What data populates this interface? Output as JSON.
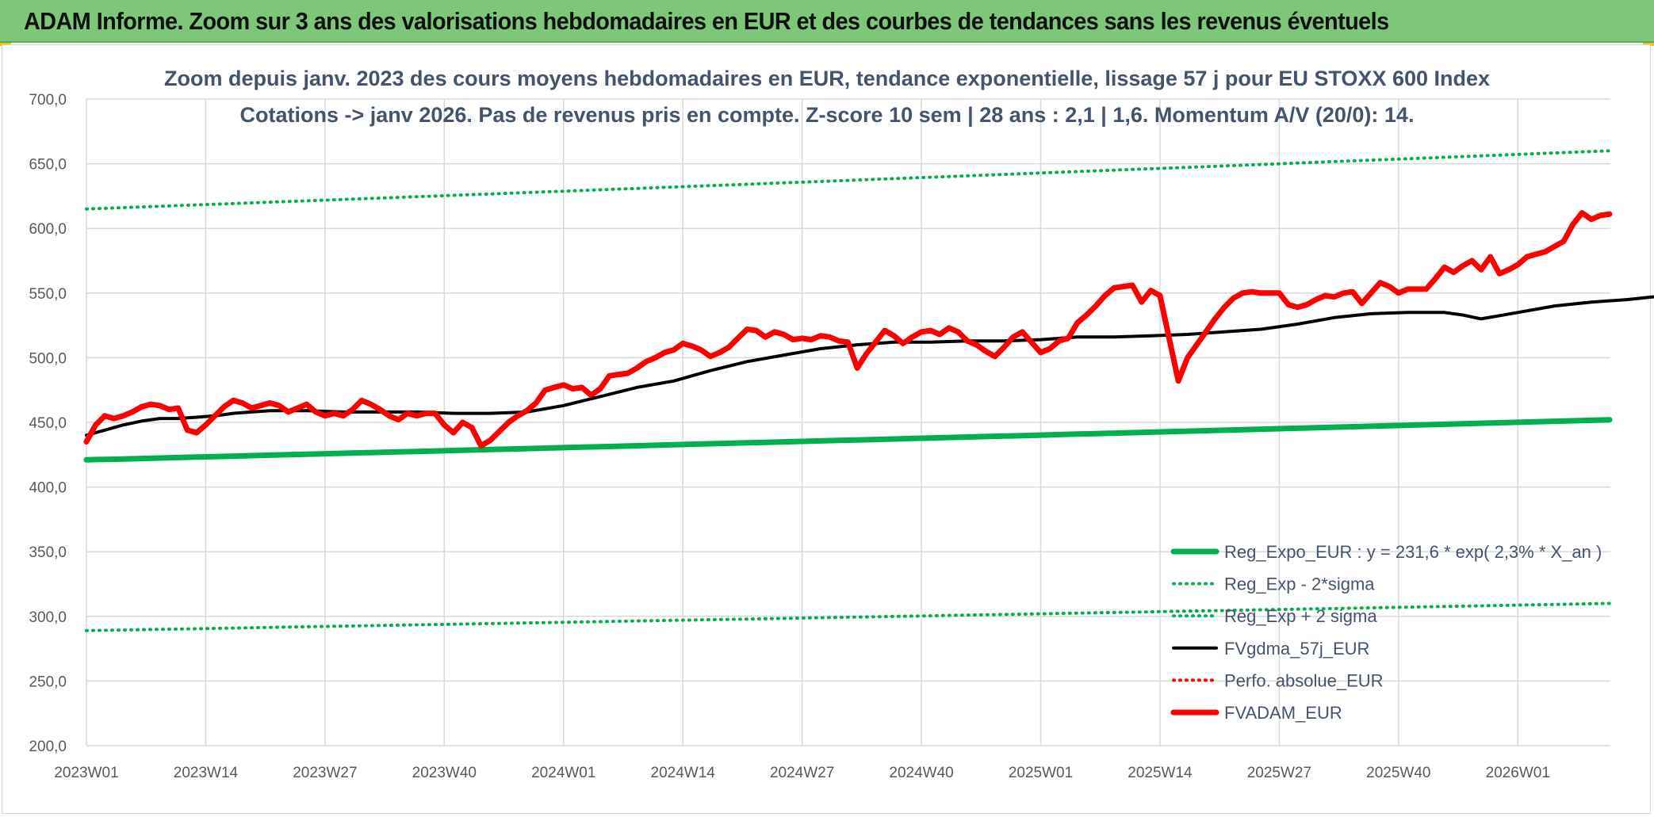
{
  "banner": {
    "title": "ADAM Informe. Zoom sur 3 ans des valorisations hebdomadaires en EUR et des courbes de tendances sans les revenus éventuels"
  },
  "chart_data": {
    "type": "line",
    "title": "Zoom depuis janv. 2023 des cours moyens hebdomadaires en EUR, tendance exponentielle, lissage 57 j pour EU STOXX 600 Index",
    "subtitle": "Cotations -> janv 2026. Pas de revenus pris en compte. Z-score 10 sem | 28 ans : 2,1 | 1,6. Momentum A/V (20/0): 14.",
    "xlabel": "",
    "ylabel": "",
    "ylim": [
      200,
      700
    ],
    "yticks": [
      "200,0",
      "250,0",
      "300,0",
      "350,0",
      "400,0",
      "450,0",
      "500,0",
      "550,0",
      "600,0",
      "650,0",
      "700,0"
    ],
    "xticks": [
      "2023W01",
      "2023W14",
      "2023W27",
      "2023W40",
      "2024W01",
      "2024W14",
      "2024W27",
      "2024W40",
      "2025W01",
      "2025W14",
      "2025W27",
      "2025W40",
      "2026W01"
    ],
    "grid": true,
    "legend_position": "bottom-right",
    "colors": {
      "green": "#00b050",
      "red": "#ff0000",
      "black": "#000000"
    },
    "series": [
      {
        "name": "Reg_Expo_EUR : y = 231,6 * exp( 2,3% *  X_an )",
        "style": "solid-thick",
        "color": "#00b050",
        "start": 421,
        "end": 452
      },
      {
        "name": "Reg_Exp - 2*sigma",
        "style": "dotted",
        "color": "#00b050",
        "start": 289,
        "end": 310
      },
      {
        "name": "Reg_Exp + 2 sigma",
        "style": "dotted",
        "color": "#00b050",
        "start": 615,
        "end": 660
      },
      {
        "name": "FVgdma_57j_EUR",
        "style": "solid",
        "color": "#000000",
        "points": [
          [
            0,
            440
          ],
          [
            2,
            444
          ],
          [
            4,
            448
          ],
          [
            6,
            451
          ],
          [
            8,
            453
          ],
          [
            10,
            453
          ],
          [
            12,
            454
          ],
          [
            14,
            455
          ],
          [
            16,
            457
          ],
          [
            18,
            458
          ],
          [
            20,
            459
          ],
          [
            24,
            459
          ],
          [
            28,
            458
          ],
          [
            32,
            458
          ],
          [
            36,
            458
          ],
          [
            40,
            457
          ],
          [
            44,
            457
          ],
          [
            48,
            458
          ],
          [
            52,
            463
          ],
          [
            56,
            470
          ],
          [
            60,
            477
          ],
          [
            64,
            482
          ],
          [
            68,
            490
          ],
          [
            72,
            497
          ],
          [
            76,
            502
          ],
          [
            80,
            507
          ],
          [
            84,
            510
          ],
          [
            88,
            512
          ],
          [
            92,
            512
          ],
          [
            96,
            513
          ],
          [
            100,
            513
          ],
          [
            104,
            514
          ],
          [
            108,
            516
          ],
          [
            112,
            516
          ],
          [
            116,
            517
          ],
          [
            120,
            518
          ],
          [
            124,
            520
          ],
          [
            128,
            522
          ],
          [
            132,
            526
          ],
          [
            136,
            531
          ],
          [
            140,
            534
          ],
          [
            144,
            535
          ],
          [
            148,
            535
          ],
          [
            150,
            533
          ],
          [
            152,
            530
          ],
          [
            156,
            535
          ],
          [
            160,
            540
          ],
          [
            164,
            543
          ],
          [
            168,
            545
          ],
          [
            172,
            548
          ],
          [
            176,
            551
          ],
          [
            180,
            555
          ],
          [
            184,
            559
          ],
          [
            188,
            563
          ],
          [
            192,
            568
          ],
          [
            196,
            573
          ],
          [
            200,
            580
          ],
          [
            204,
            587
          ],
          [
            208,
            593
          ],
          [
            210,
            596
          ],
          [
            212,
            598
          ]
        ]
      },
      {
        "name": "Perfo. absolue_EUR",
        "style": "dotted",
        "color": "#ff0000",
        "points": []
      },
      {
        "name": "FVADAM_EUR",
        "style": "solid-thick",
        "color": "#ff0000",
        "points": [
          [
            0,
            435
          ],
          [
            1,
            448
          ],
          [
            2,
            455
          ],
          [
            3,
            453
          ],
          [
            4,
            455
          ],
          [
            5,
            458
          ],
          [
            6,
            462
          ],
          [
            7,
            464
          ],
          [
            8,
            463
          ],
          [
            9,
            460
          ],
          [
            10,
            461
          ],
          [
            11,
            444
          ],
          [
            12,
            442
          ],
          [
            13,
            448
          ],
          [
            14,
            455
          ],
          [
            15,
            462
          ],
          [
            16,
            467
          ],
          [
            17,
            465
          ],
          [
            18,
            461
          ],
          [
            19,
            463
          ],
          [
            20,
            465
          ],
          [
            21,
            463
          ],
          [
            22,
            458
          ],
          [
            23,
            461
          ],
          [
            24,
            464
          ],
          [
            25,
            458
          ],
          [
            26,
            455
          ],
          [
            27,
            457
          ],
          [
            28,
            455
          ],
          [
            29,
            460
          ],
          [
            30,
            467
          ],
          [
            31,
            464
          ],
          [
            32,
            460
          ],
          [
            33,
            455
          ],
          [
            34,
            452
          ],
          [
            35,
            457
          ],
          [
            36,
            455
          ],
          [
            37,
            457
          ],
          [
            38,
            457
          ],
          [
            39,
            448
          ],
          [
            40,
            442
          ],
          [
            41,
            450
          ],
          [
            42,
            446
          ],
          [
            43,
            432
          ],
          [
            44,
            436
          ],
          [
            45,
            443
          ],
          [
            46,
            450
          ],
          [
            47,
            455
          ],
          [
            48,
            459
          ],
          [
            49,
            465
          ],
          [
            50,
            475
          ],
          [
            51,
            477
          ],
          [
            52,
            479
          ],
          [
            53,
            476
          ],
          [
            54,
            477
          ],
          [
            55,
            471
          ],
          [
            56,
            476
          ],
          [
            57,
            486
          ],
          [
            58,
            487
          ],
          [
            59,
            488
          ],
          [
            60,
            492
          ],
          [
            61,
            497
          ],
          [
            62,
            500
          ],
          [
            63,
            504
          ],
          [
            64,
            506
          ],
          [
            65,
            511
          ],
          [
            66,
            509
          ],
          [
            67,
            506
          ],
          [
            68,
            501
          ],
          [
            69,
            504
          ],
          [
            70,
            508
          ],
          [
            71,
            515
          ],
          [
            72,
            522
          ],
          [
            73,
            521
          ],
          [
            74,
            516
          ],
          [
            75,
            520
          ],
          [
            76,
            518
          ],
          [
            77,
            514
          ],
          [
            78,
            515
          ],
          [
            79,
            514
          ],
          [
            80,
            517
          ],
          [
            81,
            516
          ],
          [
            82,
            513
          ],
          [
            83,
            512
          ],
          [
            84,
            492
          ],
          [
            85,
            503
          ],
          [
            86,
            512
          ],
          [
            87,
            521
          ],
          [
            88,
            517
          ],
          [
            89,
            511
          ],
          [
            90,
            516
          ],
          [
            91,
            520
          ],
          [
            92,
            521
          ],
          [
            93,
            518
          ],
          [
            94,
            523
          ],
          [
            95,
            520
          ],
          [
            96,
            513
          ],
          [
            97,
            510
          ],
          [
            98,
            505
          ],
          [
            99,
            501
          ],
          [
            100,
            508
          ],
          [
            101,
            516
          ],
          [
            102,
            520
          ],
          [
            103,
            512
          ],
          [
            104,
            504
          ],
          [
            105,
            507
          ],
          [
            106,
            513
          ],
          [
            107,
            515
          ],
          [
            108,
            527
          ],
          [
            109,
            533
          ],
          [
            110,
            540
          ],
          [
            111,
            548
          ],
          [
            112,
            554
          ],
          [
            113,
            555
          ],
          [
            114,
            556
          ],
          [
            115,
            543
          ],
          [
            116,
            552
          ],
          [
            117,
            548
          ],
          [
            118,
            515
          ],
          [
            119,
            482
          ],
          [
            120,
            500
          ],
          [
            121,
            510
          ],
          [
            122,
            520
          ],
          [
            123,
            530
          ],
          [
            124,
            539
          ],
          [
            125,
            546
          ],
          [
            126,
            550
          ],
          [
            127,
            551
          ],
          [
            128,
            550
          ],
          [
            129,
            550
          ],
          [
            130,
            550
          ],
          [
            131,
            541
          ],
          [
            132,
            539
          ],
          [
            133,
            541
          ],
          [
            134,
            545
          ],
          [
            135,
            548
          ],
          [
            136,
            547
          ],
          [
            137,
            550
          ],
          [
            138,
            551
          ],
          [
            139,
            542
          ],
          [
            140,
            550
          ],
          [
            141,
            558
          ],
          [
            142,
            555
          ],
          [
            143,
            550
          ],
          [
            144,
            553
          ],
          [
            145,
            553
          ],
          [
            146,
            553
          ],
          [
            147,
            561
          ],
          [
            148,
            570
          ],
          [
            149,
            566
          ],
          [
            150,
            571
          ],
          [
            151,
            575
          ],
          [
            152,
            568
          ],
          [
            153,
            578
          ],
          [
            154,
            565
          ],
          [
            155,
            568
          ],
          [
            156,
            572
          ],
          [
            157,
            578
          ],
          [
            158,
            580
          ],
          [
            159,
            582
          ],
          [
            160,
            586
          ],
          [
            161,
            590
          ],
          [
            162,
            603
          ],
          [
            163,
            612
          ],
          [
            164,
            607
          ],
          [
            165,
            610
          ],
          [
            166,
            611
          ]
        ]
      }
    ]
  }
}
